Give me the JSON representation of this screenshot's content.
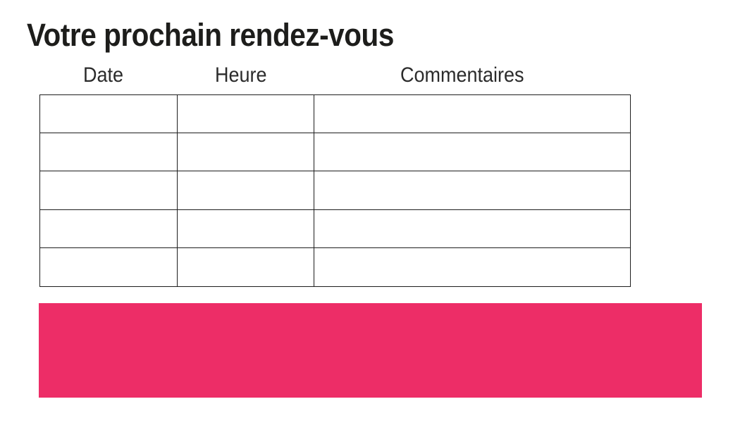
{
  "page": {
    "title": "Votre prochain rendez-vous"
  },
  "table": {
    "columns": [
      "Date",
      "Heure",
      "Commentaires"
    ],
    "rows": [
      [
        "",
        "",
        ""
      ],
      [
        "",
        "",
        ""
      ],
      [
        "",
        "",
        ""
      ],
      [
        "",
        "",
        ""
      ],
      [
        "",
        "",
        ""
      ]
    ]
  },
  "banner": {
    "color": "#ED2D67"
  },
  "colors": {
    "accent": "#ED2D67",
    "text": "#1d1d1b",
    "table_border": "#1e1e1e"
  }
}
